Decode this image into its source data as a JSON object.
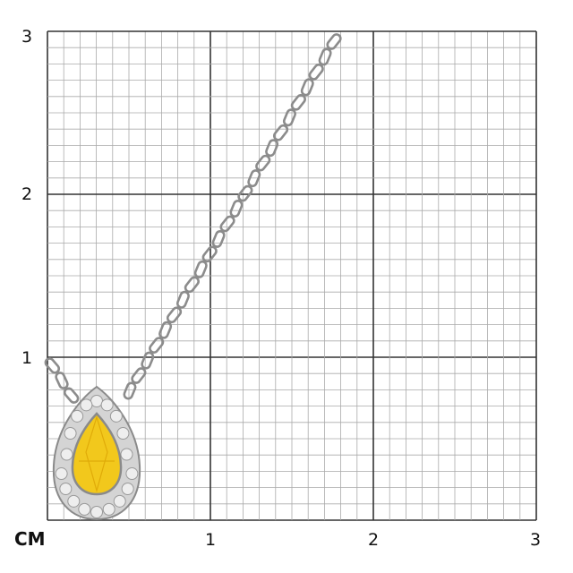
{
  "scale": {
    "unit_label": "CM",
    "x_ticks": [
      "1",
      "2",
      "3"
    ],
    "y_ticks": [
      "1",
      "2",
      "3"
    ],
    "minor_divisions_per_unit": 10
  },
  "product": {
    "stone_color": "#f2c81c",
    "metal_color": "#c8c8c8"
  }
}
